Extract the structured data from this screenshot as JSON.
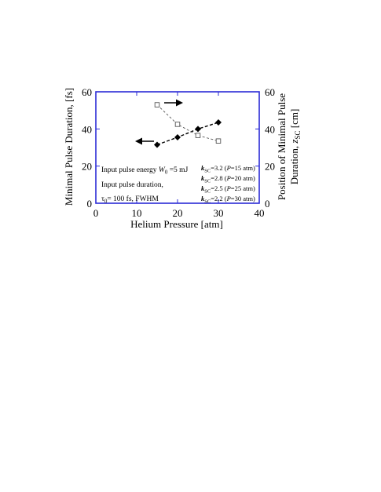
{
  "chart_data": {
    "type": "scatter",
    "xlabel": "Helium Pressure [atm]",
    "ylabel_left": "Minimal Pulse Duration, [fs]",
    "ylabel_right_line1": "Position of Minimal Pulse",
    "ylabel_right_line2_prefix": "Duration, ",
    "ylabel_right_symbol": "z",
    "ylabel_right_subscript": "SC",
    "ylabel_right_unit": " [cm]",
    "xlim": [
      0,
      40
    ],
    "ylim_left": [
      0,
      60
    ],
    "ylim_right": [
      0,
      60
    ],
    "x_ticks": [
      "0",
      "10",
      "20",
      "30",
      "40"
    ],
    "y_ticks_left": [
      "0",
      "20",
      "40",
      "60"
    ],
    "y_ticks_right": [
      "0",
      "20",
      "40",
      "60"
    ],
    "grid": false,
    "series": [
      {
        "axis": "left",
        "marker": "filled-diamond",
        "line": "dashed",
        "x": [
          15,
          20,
          25,
          30
        ],
        "y": [
          31.5,
          35.5,
          40,
          43.5
        ]
      },
      {
        "axis": "right",
        "marker": "open-square",
        "line": "dashed",
        "x": [
          15,
          20,
          25,
          30
        ],
        "y": [
          53,
          42.5,
          36.5,
          33.5
        ]
      }
    ],
    "annotations": {
      "energy_prefix": "Input pulse energy ",
      "energy_symbol": "W",
      "energy_subscript": "0",
      "energy_value": " =5 mJ",
      "duration_line": "Input pulse duration,",
      "tau_symbol": "τ",
      "tau_subscript": "0",
      "tau_value": "= 100 fs, FWHM",
      "k_symbol": "k",
      "k_subscript": "SC",
      "k_entries": [
        {
          "value": "=3.2",
          "p_value": "=15 atm)"
        },
        {
          "value": "=2.8",
          "p_value": "=20 atm)"
        },
        {
          "value": "=2.5",
          "p_value": "=25 atm)"
        },
        {
          "value": "=2.2",
          "p_value": "=30 atm)"
        }
      ],
      "p_open": "(",
      "p_symbol": "P"
    }
  },
  "colors": {
    "frame": "#2b2bd6",
    "series": "#000000",
    "series_right": "#555555"
  }
}
